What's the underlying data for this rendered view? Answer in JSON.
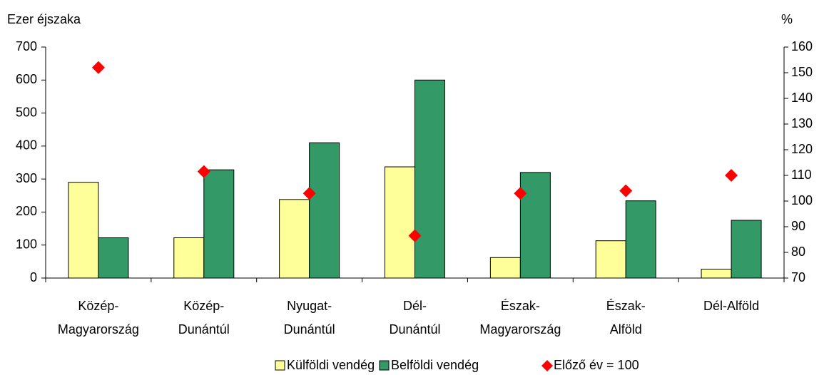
{
  "chart_data": {
    "type": "bar",
    "y_label": "Ezer éjszaka",
    "y2_label": "%",
    "categories": [
      [
        "Közép-",
        "Magyarország"
      ],
      [
        "Közép-",
        "Dunántúl"
      ],
      [
        "Nyugat-",
        "Dunántúl"
      ],
      [
        "Dél-",
        "Dunántúl"
      ],
      [
        "Észak-",
        "Magyarország"
      ],
      [
        "Észak-",
        "Alföld"
      ],
      [
        "Dél-Alföld"
      ]
    ],
    "series": [
      {
        "name": "Külföldi vendég",
        "color": "#ffff99",
        "values": [
          290,
          122,
          238,
          337,
          62,
          113,
          27
        ]
      },
      {
        "name": "Belföldi vendég",
        "color": "#339966",
        "values": [
          122,
          328,
          410,
          600,
          320,
          234,
          175
        ]
      },
      {
        "name": "Előző év = 100",
        "color": "#ff0000",
        "type": "scatter",
        "axis": "y2",
        "values": [
          152,
          111.5,
          103,
          86.5,
          103,
          104,
          110
        ]
      }
    ],
    "ylim": [
      0,
      700
    ],
    "yticks": [
      0,
      100,
      200,
      300,
      400,
      500,
      600,
      700
    ],
    "y2lim": [
      70,
      160
    ],
    "y2ticks": [
      70,
      80,
      90,
      100,
      110,
      120,
      130,
      140,
      150,
      160
    ],
    "grid": false,
    "legend": "bottom"
  }
}
